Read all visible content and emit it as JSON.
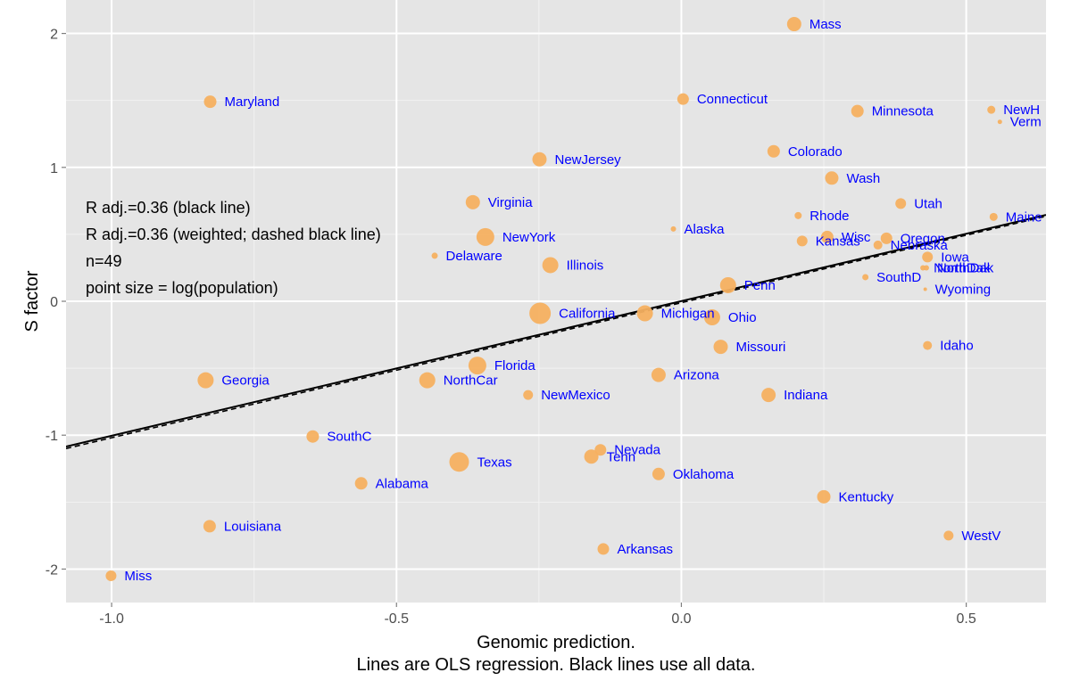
{
  "chart_data": {
    "type": "scatter",
    "xlabel": "Genomic prediction.",
    "subtitle": "Lines are OLS regression. Black lines use all data.",
    "ylabel": "S factor",
    "xlim": [
      -1.08,
      0.64
    ],
    "ylim": [
      -2.25,
      2.25
    ],
    "x_ticks": [
      -1.0,
      -0.5,
      0.0,
      0.5
    ],
    "x_tick_labels": [
      "-1.0",
      "-0.5",
      "0.0",
      "0.5"
    ],
    "y_ticks": [
      -2,
      -1,
      0,
      1,
      2
    ],
    "y_tick_labels": [
      "-2",
      "-1",
      "0",
      "1",
      "2"
    ],
    "annotations": [
      "R adj.=0.36 (black line)",
      "R adj.=0.36 (weighted; dashed black line)",
      "n=49",
      "point size = log(population)"
    ],
    "regression": {
      "solid": {
        "x0": -1.08,
        "y0": -1.085,
        "x1": 0.64,
        "y1": 0.645
      },
      "dashed": {
        "x0": -1.08,
        "y0": -1.1,
        "x1": 0.64,
        "y1": 0.635
      }
    },
    "point_color": "#f5b060",
    "label_color": "#0000ff",
    "points": [
      {
        "label": "Mass",
        "x": 0.198,
        "y": 2.07,
        "size": 8
      },
      {
        "label": "Maryland",
        "x": -0.827,
        "y": 1.49,
        "size": 7
      },
      {
        "label": "Connecticut",
        "x": 0.003,
        "y": 1.51,
        "size": 6.5
      },
      {
        "label": "Minnesota",
        "x": 0.309,
        "y": 1.42,
        "size": 7
      },
      {
        "label": "NewH",
        "x": 0.544,
        "y": 1.43,
        "size": 4.5
      },
      {
        "label": "Verm",
        "x": 0.559,
        "y": 1.34,
        "size": 2.5
      },
      {
        "label": "Colorado",
        "x": 0.162,
        "y": 1.12,
        "size": 7
      },
      {
        "label": "NewJersey",
        "x": -0.249,
        "y": 1.06,
        "size": 8
      },
      {
        "label": "Wash",
        "x": 0.264,
        "y": 0.92,
        "size": 7.5
      },
      {
        "label": "Virginia",
        "x": -0.366,
        "y": 0.74,
        "size": 8
      },
      {
        "label": "Utah",
        "x": 0.385,
        "y": 0.73,
        "size": 6
      },
      {
        "label": "Rhode",
        "x": 0.205,
        "y": 0.64,
        "size": 4
      },
      {
        "label": "Maine",
        "x": 0.548,
        "y": 0.63,
        "size": 4.5
      },
      {
        "label": "Alaska",
        "x": -0.014,
        "y": 0.54,
        "size": 3
      },
      {
        "label": "NewYork",
        "x": -0.344,
        "y": 0.48,
        "size": 10
      },
      {
        "label": "Wisc",
        "x": 0.256,
        "y": 0.48,
        "size": 7
      },
      {
        "label": "Kansas",
        "x": 0.212,
        "y": 0.45,
        "size": 6
      },
      {
        "label": "Oregon",
        "x": 0.36,
        "y": 0.47,
        "size": 6.5
      },
      {
        "label": "Nebraska",
        "x": 0.345,
        "y": 0.42,
        "size": 5
      },
      {
        "label": "Delaware",
        "x": -0.433,
        "y": 0.34,
        "size": 3.5
      },
      {
        "label": "Iowa",
        "x": 0.432,
        "y": 0.33,
        "size": 6
      },
      {
        "label": "NorthDak",
        "x": 0.424,
        "y": 0.25,
        "size": 3
      },
      {
        "label": "NorthDak",
        "x": 0.43,
        "y": 0.25,
        "size": 3
      },
      {
        "label": "Illinois",
        "x": -0.23,
        "y": 0.27,
        "size": 9
      },
      {
        "label": "SouthD",
        "x": 0.323,
        "y": 0.18,
        "size": 3.5
      },
      {
        "label": "Penn",
        "x": 0.082,
        "y": 0.12,
        "size": 9
      },
      {
        "label": "Wyoming",
        "x": 0.428,
        "y": 0.09,
        "size": 2
      },
      {
        "label": "California",
        "x": -0.248,
        "y": -0.09,
        "size": 12
      },
      {
        "label": "Michigan",
        "x": -0.064,
        "y": -0.09,
        "size": 9
      },
      {
        "label": "Ohio",
        "x": 0.054,
        "y": -0.12,
        "size": 9
      },
      {
        "label": "Missouri",
        "x": 0.069,
        "y": -0.34,
        "size": 8
      },
      {
        "label": "Idaho",
        "x": 0.432,
        "y": -0.33,
        "size": 5
      },
      {
        "label": "Florida",
        "x": -0.358,
        "y": -0.48,
        "size": 10
      },
      {
        "label": "Arizona",
        "x": -0.04,
        "y": -0.55,
        "size": 8
      },
      {
        "label": "Georgia",
        "x": -0.835,
        "y": -0.59,
        "size": 9
      },
      {
        "label": "NorthCar",
        "x": -0.446,
        "y": -0.59,
        "size": 9
      },
      {
        "label": "NewMexico",
        "x": -0.269,
        "y": -0.7,
        "size": 5.5
      },
      {
        "label": "Indiana",
        "x": 0.153,
        "y": -0.7,
        "size": 8
      },
      {
        "label": "SouthC",
        "x": -0.647,
        "y": -1.01,
        "size": 7
      },
      {
        "label": "Nevada",
        "x": -0.142,
        "y": -1.11,
        "size": 6.5
      },
      {
        "label": "Tenn",
        "x": -0.158,
        "y": -1.16,
        "size": 8
      },
      {
        "label": "Texas",
        "x": -0.39,
        "y": -1.2,
        "size": 11
      },
      {
        "label": "Oklahoma",
        "x": -0.04,
        "y": -1.29,
        "size": 7
      },
      {
        "label": "Alabama",
        "x": -0.562,
        "y": -1.36,
        "size": 7
      },
      {
        "label": "Kentucky",
        "x": 0.25,
        "y": -1.46,
        "size": 7.5
      },
      {
        "label": "Louisiana",
        "x": -0.828,
        "y": -1.68,
        "size": 7
      },
      {
        "label": "WestV",
        "x": 0.469,
        "y": -1.75,
        "size": 5.5
      },
      {
        "label": "Arkansas",
        "x": -0.137,
        "y": -1.85,
        "size": 6.5
      },
      {
        "label": "Miss",
        "x": -1.001,
        "y": -2.05,
        "size": 6
      }
    ]
  }
}
